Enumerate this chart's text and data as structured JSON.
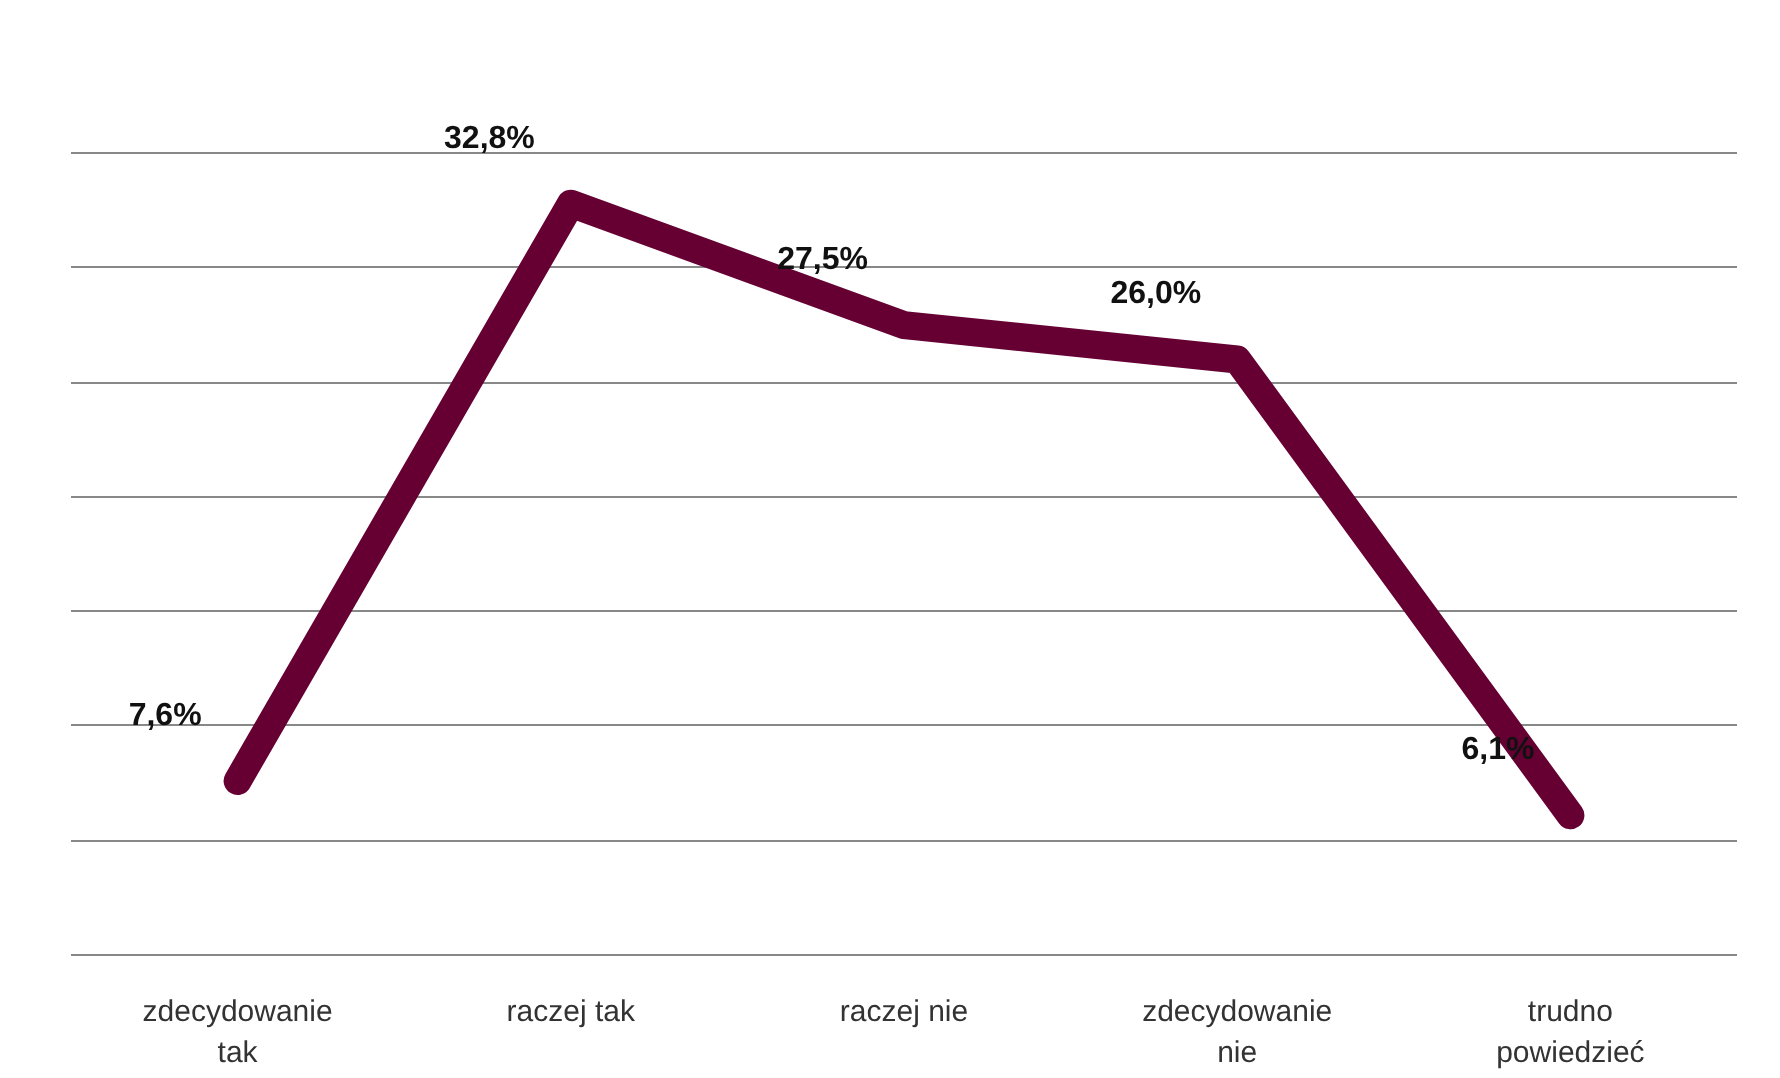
{
  "chart_data": {
    "type": "line",
    "categories": [
      "zdecydowanie tak",
      "raczej tak",
      "raczej nie",
      "zdecydowanie nie",
      "trudno powiedzieć"
    ],
    "color": "#660033",
    "values": [
      7.6,
      32.8,
      27.5,
      26.0,
      6.1
    ],
    "value_labels": [
      "7,6%",
      "32,8%",
      "27,5%",
      "26,0%",
      "6,1%"
    ],
    "grid": "y",
    "tick_labels": "x",
    "line_style": "solid",
    "legend": false
  }
}
